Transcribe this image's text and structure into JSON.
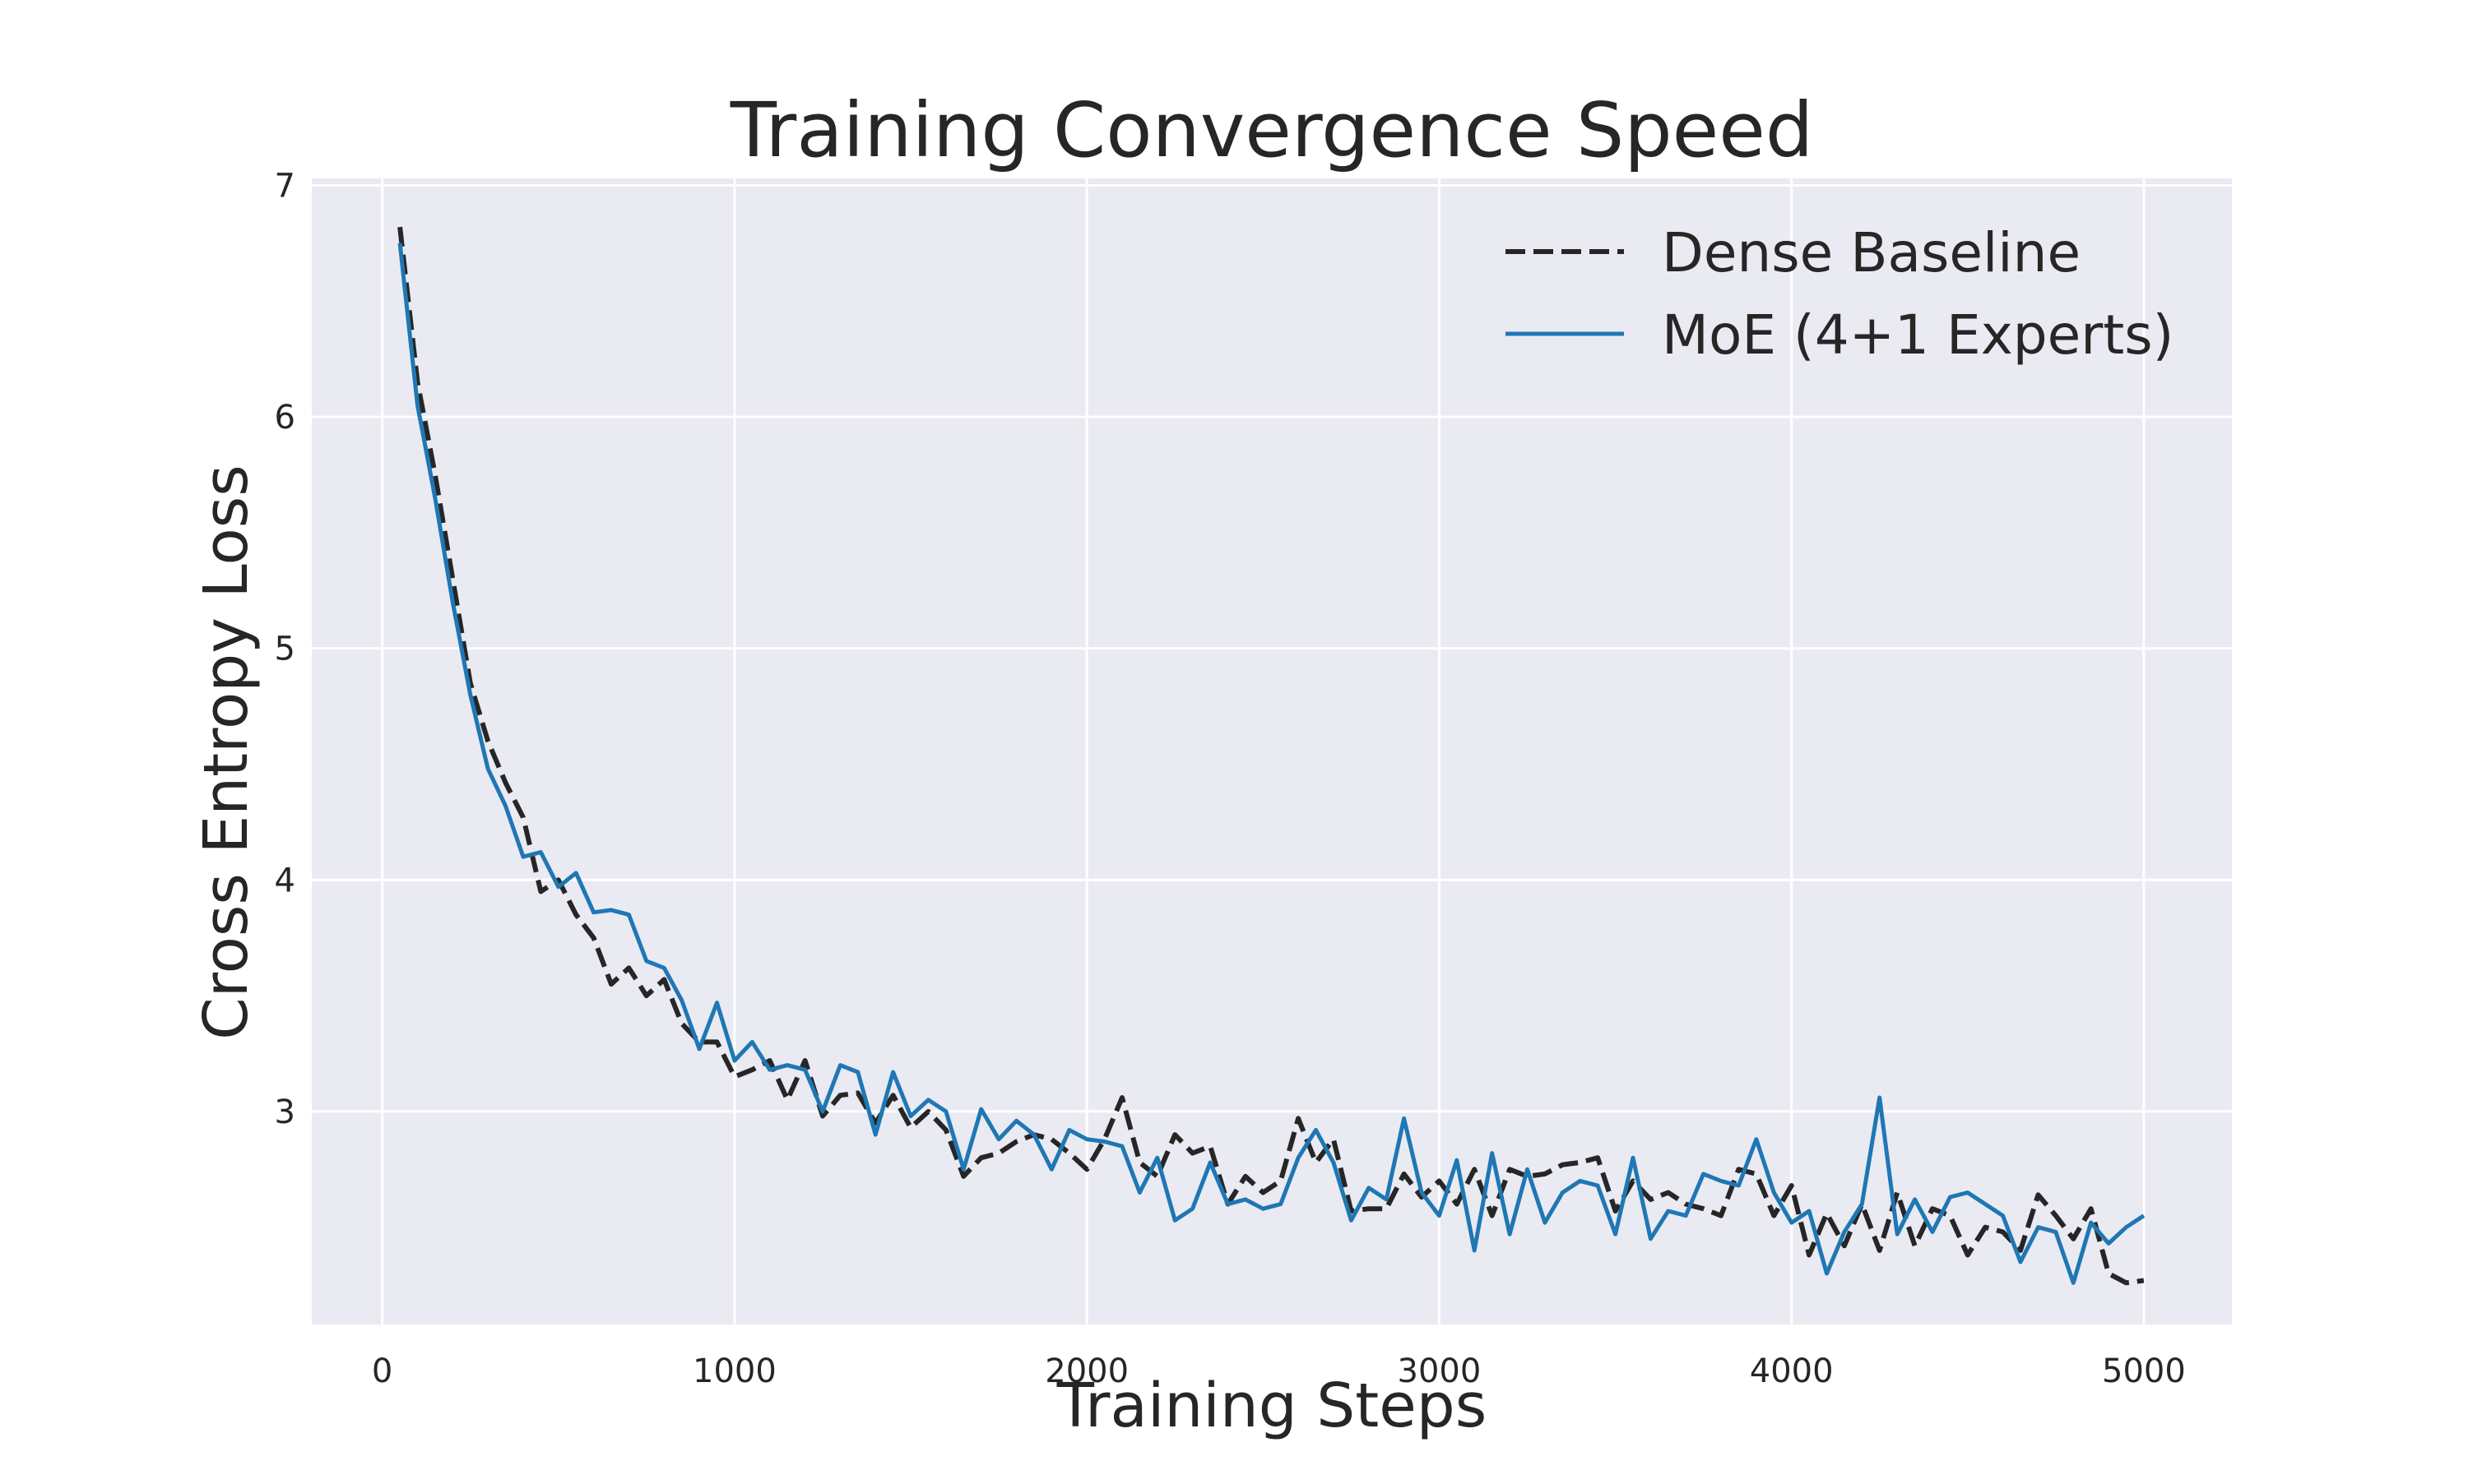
{
  "chart_data": {
    "type": "line",
    "title": "Training Convergence Speed",
    "xlabel": "Training Steps",
    "ylabel": "Cross Entropy Loss",
    "xlim": [
      -200,
      5250
    ],
    "ylim": [
      2.08,
      7.03
    ],
    "xticks": [
      0,
      1000,
      2000,
      3000,
      4000,
      5000
    ],
    "xtick_labels": [
      "0",
      "1000",
      "2000",
      "3000",
      "4000",
      "5000"
    ],
    "yticks": [
      3,
      4,
      5,
      6,
      7
    ],
    "ytick_labels": [
      "3",
      "4",
      "5",
      "6",
      "7"
    ],
    "grid": true,
    "legend": "top-right",
    "x": [
      50,
      100,
      150,
      200,
      250,
      300,
      350,
      400,
      450,
      500,
      550,
      600,
      650,
      700,
      750,
      800,
      850,
      900,
      950,
      1000,
      1050,
      1100,
      1150,
      1200,
      1250,
      1300,
      1350,
      1400,
      1450,
      1500,
      1550,
      1600,
      1650,
      1700,
      1750,
      1800,
      1850,
      1900,
      1950,
      2000,
      2050,
      2100,
      2150,
      2200,
      2250,
      2300,
      2350,
      2400,
      2450,
      2500,
      2550,
      2600,
      2650,
      2700,
      2750,
      2800,
      2850,
      2900,
      2950,
      3000,
      3050,
      3100,
      3150,
      3200,
      3250,
      3300,
      3350,
      3400,
      3450,
      3500,
      3550,
      3600,
      3650,
      3700,
      3750,
      3800,
      3850,
      3900,
      3950,
      4000,
      4050,
      4100,
      4150,
      4200,
      4250,
      4300,
      4350,
      4400,
      4450,
      4500,
      4550,
      4600,
      4650,
      4700,
      4750,
      4800,
      4850,
      4900,
      4950,
      5000
    ],
    "series": [
      {
        "name": "Dense Baseline",
        "color": "#262626",
        "style": "dashed",
        "values": [
          6.82,
          6.15,
          5.75,
          5.3,
          4.85,
          4.6,
          4.42,
          4.27,
          3.95,
          4.0,
          3.85,
          3.75,
          3.55,
          3.62,
          3.5,
          3.57,
          3.38,
          3.3,
          3.3,
          3.15,
          3.18,
          3.22,
          3.05,
          3.22,
          2.98,
          3.07,
          3.08,
          2.95,
          3.07,
          2.93,
          3.0,
          2.92,
          2.72,
          2.8,
          2.82,
          2.87,
          2.9,
          2.88,
          2.82,
          2.75,
          2.88,
          3.06,
          2.78,
          2.72,
          2.9,
          2.82,
          2.85,
          2.6,
          2.72,
          2.65,
          2.7,
          2.97,
          2.78,
          2.88,
          2.57,
          2.58,
          2.58,
          2.73,
          2.63,
          2.7,
          2.6,
          2.75,
          2.55,
          2.75,
          2.72,
          2.73,
          2.77,
          2.78,
          2.8,
          2.57,
          2.7,
          2.62,
          2.65,
          2.6,
          2.58,
          2.55,
          2.75,
          2.73,
          2.55,
          2.68,
          2.38,
          2.56,
          2.42,
          2.6,
          2.4,
          2.65,
          2.42,
          2.58,
          2.55,
          2.38,
          2.5,
          2.48,
          2.4,
          2.64,
          2.55,
          2.45,
          2.58,
          2.3,
          2.26,
          2.27
        ]
      },
      {
        "name": "MoE (4+1 Experts)",
        "color": "#1f77b4",
        "style": "solid",
        "values": [
          6.75,
          6.05,
          5.65,
          5.2,
          4.8,
          4.48,
          4.32,
          4.1,
          4.12,
          3.97,
          4.03,
          3.86,
          3.87,
          3.85,
          3.65,
          3.62,
          3.48,
          3.27,
          3.47,
          3.22,
          3.3,
          3.18,
          3.2,
          3.18,
          3.0,
          3.2,
          3.17,
          2.9,
          3.17,
          2.98,
          3.05,
          3.0,
          2.75,
          3.01,
          2.88,
          2.96,
          2.9,
          2.75,
          2.92,
          2.88,
          2.87,
          2.85,
          2.65,
          2.8,
          2.53,
          2.58,
          2.78,
          2.6,
          2.62,
          2.58,
          2.6,
          2.8,
          2.92,
          2.78,
          2.53,
          2.67,
          2.62,
          2.97,
          2.65,
          2.55,
          2.79,
          2.4,
          2.82,
          2.47,
          2.75,
          2.52,
          2.65,
          2.7,
          2.68,
          2.47,
          2.8,
          2.45,
          2.57,
          2.55,
          2.73,
          2.7,
          2.68,
          2.88,
          2.65,
          2.52,
          2.57,
          2.3,
          2.48,
          2.6,
          3.06,
          2.47,
          2.62,
          2.48,
          2.63,
          2.65,
          2.6,
          2.55,
          2.35,
          2.5,
          2.48,
          2.26,
          2.52,
          2.43,
          2.5,
          2.55
        ]
      }
    ]
  }
}
